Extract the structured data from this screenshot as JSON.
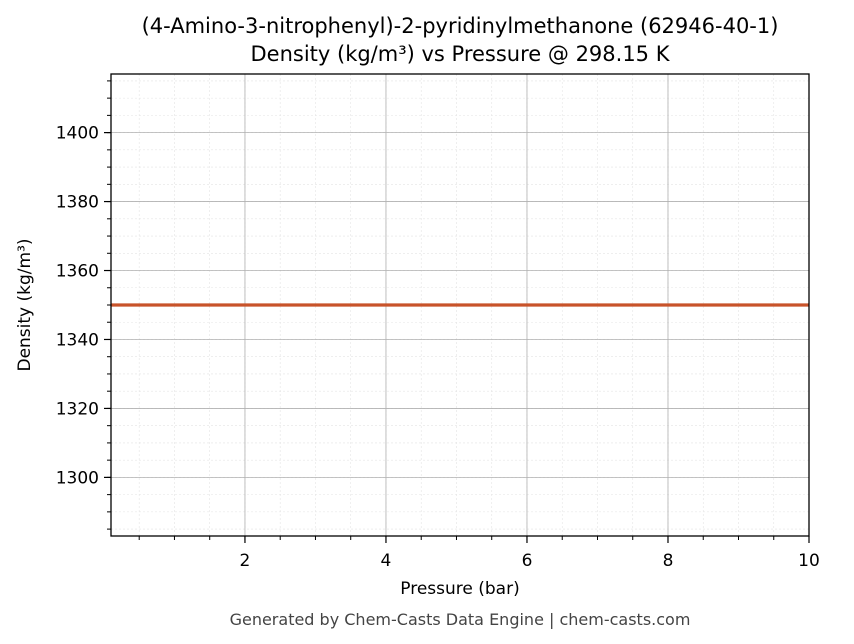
{
  "chart_data": {
    "type": "line",
    "title": "(4-Amino-3-nitrophenyl)-2-pyridinylmethanone (62946-40-1)",
    "subtitle": "Density (kg/m³) vs Pressure @ 298.15 K",
    "xlabel": "Pressure (bar)",
    "ylabel": "Density (kg/m³)",
    "xlim": [
      0.1,
      10
    ],
    "ylim": [
      1283,
      1417
    ],
    "x_ticks": [
      2,
      4,
      6,
      8,
      10
    ],
    "y_ticks": [
      1300,
      1320,
      1340,
      1360,
      1380,
      1400
    ],
    "x_minor_step": 0.5,
    "y_minor_step": 5,
    "grid": true,
    "series": [
      {
        "color": "#c8532a",
        "x": [
          0.1,
          10
        ],
        "y": [
          1350,
          1350
        ]
      }
    ]
  },
  "footer": "Generated by Chem-Casts Data Engine | chem-casts.com"
}
